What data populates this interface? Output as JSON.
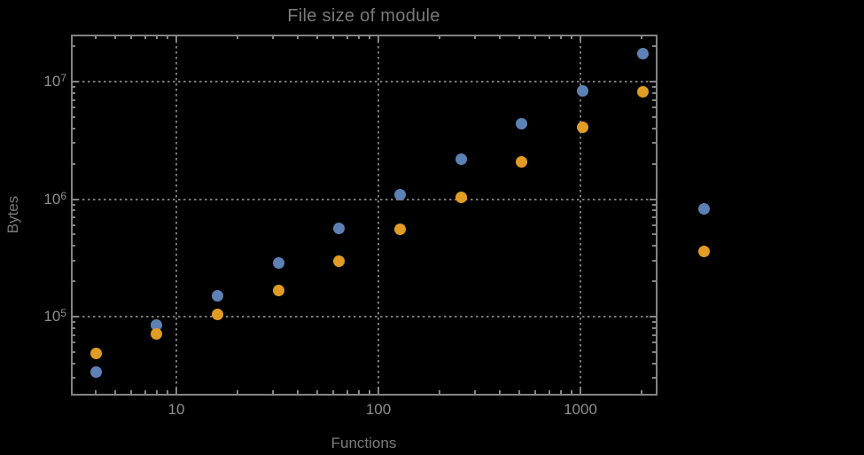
{
  "chart_data": {
    "type": "scatter",
    "title": "File size of module",
    "xlabel": "Functions",
    "ylabel": "Bytes",
    "x_scale": "log",
    "y_scale": "log",
    "xlim": [
      3.05,
      2360
    ],
    "ylim": [
      22000,
      24700000
    ],
    "grid": true,
    "grid_style": "dotted gray at major ticks",
    "legend": "none",
    "clipping": false,
    "x_major_ticks": [
      10,
      100,
      1000
    ],
    "x_major_tick_labels": [
      "10",
      "100",
      "1000"
    ],
    "y_major_ticks": [
      100000,
      1000000,
      10000000
    ],
    "y_tick_base": "10",
    "y_major_tick_exponents": [
      "5",
      "6",
      "7"
    ],
    "x": [
      4,
      8,
      16,
      32,
      64,
      128,
      256,
      512,
      1024,
      2048,
      4096
    ],
    "series": [
      {
        "name": "series-blue",
        "color": "#5E81B5",
        "values": [
          34000,
          85000,
          150000,
          284000,
          560000,
          1100000,
          2200000,
          4400000,
          8400000,
          17400000,
          830000
        ]
      },
      {
        "name": "series-orange",
        "color": "#E09C24",
        "values": [
          49000,
          71000,
          105000,
          168000,
          294000,
          550000,
          1030000,
          2090000,
          4120000,
          8260000,
          360000
        ]
      }
    ]
  },
  "colors": {
    "background": "#000000",
    "frame": "#848484",
    "grid": "#787878",
    "tick_text": "#8f8f8f",
    "title_text": "#7a7a7a"
  }
}
